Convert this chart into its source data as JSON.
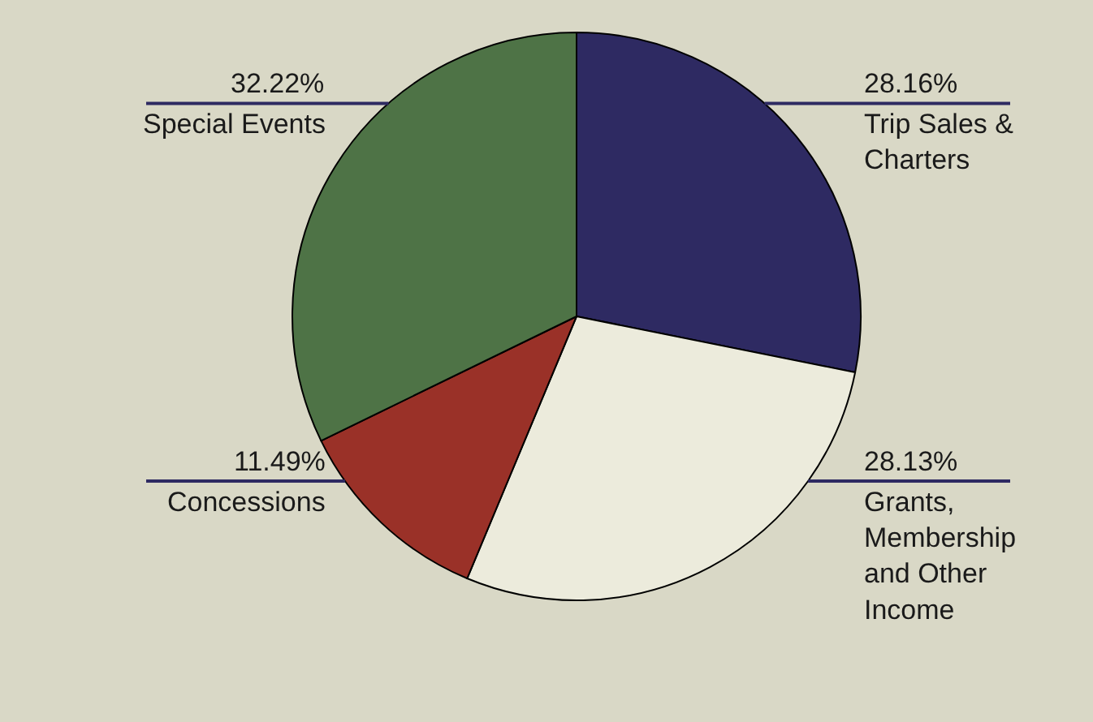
{
  "chart_data": {
    "type": "pie",
    "categories": [
      "Trip Sales & Charters",
      "Grants, Membership and Other Income",
      "Concessions",
      "Special Events"
    ],
    "values": [
      28.16,
      28.13,
      11.49,
      32.22
    ],
    "value_labels": [
      "28.16%",
      "28.13%",
      "11.49%",
      "32.22%"
    ],
    "colors": [
      "#2e2a62",
      "#ecebdc",
      "#9a3128",
      "#4e7346"
    ]
  }
}
